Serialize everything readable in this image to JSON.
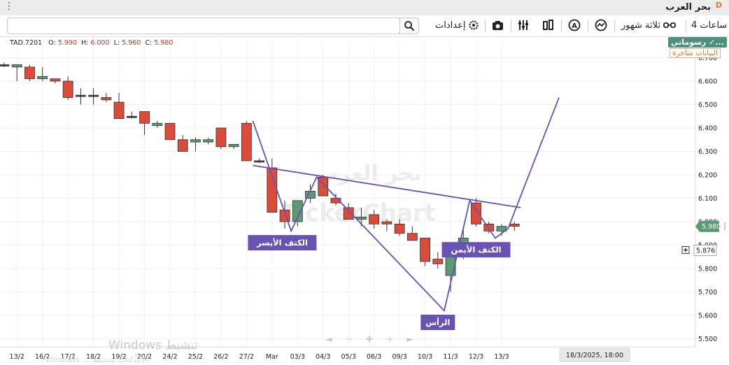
{
  "window": {
    "title": "بحر العرب",
    "badge": "D"
  },
  "toolbar": {
    "period": "4 ساعات",
    "range": "ثلاثة شهور",
    "settings": "إعدادات",
    "search_placeholder": ""
  },
  "header": {
    "ticker": "TAD.7201",
    "o_label": "O:",
    "o": "5.990",
    "h_label": "H:",
    "h": "6.000",
    "l_label": "L:",
    "l": "5.960",
    "c_label": "C:",
    "c": "5.980"
  },
  "badges": {
    "drawings": "رسوماتي ✓...",
    "delayed": "البيانات متأخرة"
  },
  "watermark": {
    "line1": "Windows تنشيط",
    "line2": "Windows ... الإعدادات لتنشيط"
  },
  "colors": {
    "up": "#5b9a72",
    "down": "#db4b3a",
    "pattern": "#6a52b3",
    "last_price_bg": "#5b9a72"
  },
  "chart_data": {
    "type": "candlestick",
    "ylim": [
      5.45,
      6.75
    ],
    "yticks": [
      "6.700",
      "6.600",
      "6.500",
      "6.400",
      "6.300",
      "6.200",
      "6.100",
      "6.000",
      "5.900",
      "5.800",
      "5.700",
      "5.600",
      "5.500"
    ],
    "xtick_labels": [
      "13/2",
      "16/2",
      "17/2",
      "18/2",
      "19/2",
      "20/2",
      "24/2",
      "25/2",
      "26/2",
      "27/2",
      "Mar",
      "03/3",
      "04/3",
      "05/3",
      "06/3",
      "09/3",
      "10/3",
      "11/3",
      "12/3",
      "13/3"
    ],
    "candles": [
      {
        "o": 6.67,
        "h": 6.68,
        "l": 6.66,
        "c": 6.67
      },
      {
        "o": 6.66,
        "h": 6.67,
        "l": 6.6,
        "c": 6.67
      },
      {
        "o": 6.66,
        "h": 6.67,
        "l": 6.6,
        "c": 6.61
      },
      {
        "o": 6.61,
        "h": 6.66,
        "l": 6.6,
        "c": 6.62
      },
      {
        "o": 6.61,
        "h": 6.61,
        "l": 6.59,
        "c": 6.6
      },
      {
        "o": 6.6,
        "h": 6.62,
        "l": 6.52,
        "c": 6.53
      },
      {
        "o": 6.54,
        "h": 6.57,
        "l": 6.5,
        "c": 6.54
      },
      {
        "o": 6.54,
        "h": 6.57,
        "l": 6.5,
        "c": 6.54
      },
      {
        "o": 6.53,
        "h": 6.55,
        "l": 6.51,
        "c": 6.52
      },
      {
        "o": 6.51,
        "h": 6.55,
        "l": 6.44,
        "c": 6.44
      },
      {
        "o": 6.45,
        "h": 6.47,
        "l": 6.44,
        "c": 6.45
      },
      {
        "o": 6.47,
        "h": 6.47,
        "l": 6.37,
        "c": 6.42
      },
      {
        "o": 6.41,
        "h": 6.43,
        "l": 6.4,
        "c": 6.42
      },
      {
        "o": 6.42,
        "h": 6.42,
        "l": 6.35,
        "c": 6.35
      },
      {
        "o": 6.35,
        "h": 6.37,
        "l": 6.3,
        "c": 6.3
      },
      {
        "o": 6.34,
        "h": 6.36,
        "l": 6.3,
        "c": 6.35
      },
      {
        "o": 6.34,
        "h": 6.36,
        "l": 6.33,
        "c": 6.35
      },
      {
        "o": 6.4,
        "h": 6.4,
        "l": 6.31,
        "c": 6.32
      },
      {
        "o": 6.32,
        "h": 6.33,
        "l": 6.31,
        "c": 6.33
      },
      {
        "o": 6.42,
        "h": 6.43,
        "l": 6.26,
        "c": 6.26
      },
      {
        "o": 6.26,
        "h": 6.27,
        "l": 6.25,
        "c": 6.26
      },
      {
        "o": 6.23,
        "h": 6.27,
        "l": 6.04,
        "c": 6.04
      },
      {
        "o": 6.05,
        "h": 6.09,
        "l": 5.97,
        "c": 6.0
      },
      {
        "o": 6.0,
        "h": 6.09,
        "l": 5.98,
        "c": 6.09
      },
      {
        "o": 6.1,
        "h": 6.16,
        "l": 6.08,
        "c": 6.13
      },
      {
        "o": 6.19,
        "h": 6.2,
        "l": 6.11,
        "c": 6.11
      },
      {
        "o": 6.1,
        "h": 6.12,
        "l": 6.07,
        "c": 6.08
      },
      {
        "o": 6.06,
        "h": 6.08,
        "l": 6.01,
        "c": 6.01
      },
      {
        "o": 6.01,
        "h": 6.06,
        "l": 5.98,
        "c": 6.02
      },
      {
        "o": 6.03,
        "h": 6.05,
        "l": 5.97,
        "c": 5.99
      },
      {
        "o": 6.0,
        "h": 6.01,
        "l": 5.96,
        "c": 5.99
      },
      {
        "o": 5.99,
        "h": 6.01,
        "l": 5.94,
        "c": 5.95
      },
      {
        "o": 5.95,
        "h": 5.98,
        "l": 5.92,
        "c": 5.92
      },
      {
        "o": 5.93,
        "h": 5.93,
        "l": 5.81,
        "c": 5.83
      },
      {
        "o": 5.84,
        "h": 5.87,
        "l": 5.8,
        "c": 5.82
      },
      {
        "o": 5.77,
        "h": 5.86,
        "l": 5.7,
        "c": 5.85
      },
      {
        "o": 5.85,
        "h": 5.97,
        "l": 5.84,
        "c": 5.93
      },
      {
        "o": 6.08,
        "h": 6.1,
        "l": 5.98,
        "c": 5.99
      },
      {
        "o": 5.99,
        "h": 6.0,
        "l": 5.95,
        "c": 5.96
      },
      {
        "o": 5.96,
        "h": 5.99,
        "l": 5.94,
        "c": 5.98
      },
      {
        "o": 5.99,
        "h": 6.0,
        "l": 5.96,
        "c": 5.98
      }
    ],
    "pattern_lines": [
      {
        "kind": "neckline",
        "points": [
          [
            19.5,
            6.24
          ],
          [
            40.5,
            6.06
          ]
        ]
      },
      {
        "kind": "shoulders-head",
        "points": [
          [
            19.5,
            6.43
          ],
          [
            22.5,
            5.96
          ],
          [
            24.5,
            6.19
          ],
          [
            34.5,
            5.62
          ],
          [
            36.5,
            6.09
          ],
          [
            38.5,
            5.93
          ],
          [
            39.5,
            5.97
          ],
          [
            43.5,
            6.53
          ]
        ]
      }
    ],
    "annotations": [
      {
        "text": "الكتف الأيسر",
        "x": 21.8,
        "y": 5.91
      },
      {
        "text": "الرأس",
        "x": 34.0,
        "y": 5.57
      },
      {
        "text": "الكتف الأيمن",
        "x": 37.0,
        "y": 5.88
      }
    ],
    "watermark_text": [
      "بحر العرب",
      "TickerChart"
    ],
    "last_price": "5.980",
    "crosshair_price": "5.876",
    "crosshair_time": "18/3/2025, 18:00"
  }
}
